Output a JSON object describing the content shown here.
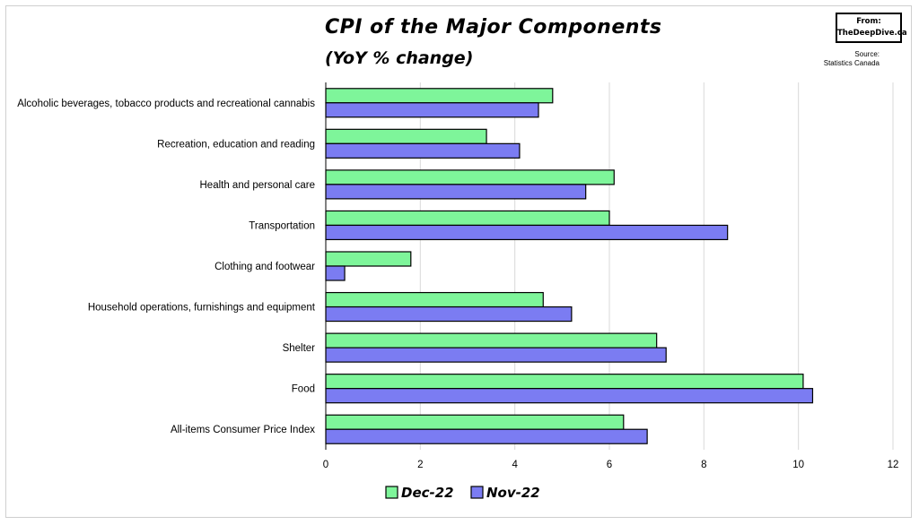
{
  "title": "CPI of the Major Components",
  "subtitle": "(YoY % change)",
  "badge": {
    "line1": "From:",
    "line2": "TheDeepDive.ca"
  },
  "source": {
    "line1": "Source:",
    "line2": "Statistics Canada"
  },
  "colors": {
    "dec": "#7ef59a",
    "nov": "#7b7cf2",
    "grid": "#d9d9d9",
    "outline": "#000000"
  },
  "chart_data": {
    "type": "bar",
    "orientation": "horizontal",
    "categories": [
      "Alcoholic beverages, tobacco products and recreational cannabis",
      "Recreation, education and reading",
      "Health and personal care",
      "Transportation",
      "Clothing and footwear",
      "Household operations, furnishings and equipment",
      "Shelter",
      "Food",
      "All-items Consumer Price Index"
    ],
    "series": [
      {
        "name": "Dec-22",
        "color": "#7ef59a",
        "values": [
          4.8,
          3.4,
          6.1,
          6.0,
          1.8,
          4.6,
          7.0,
          10.1,
          6.3
        ]
      },
      {
        "name": "Nov-22",
        "color": "#7b7cf2",
        "values": [
          4.5,
          4.1,
          5.5,
          8.5,
          0.4,
          5.2,
          7.2,
          10.3,
          6.8
        ]
      }
    ],
    "xlim": [
      0,
      12
    ],
    "xticks": [
      "0",
      "2",
      "4",
      "6",
      "8",
      "10",
      "12"
    ],
    "grid": true,
    "legend": "bottom"
  }
}
